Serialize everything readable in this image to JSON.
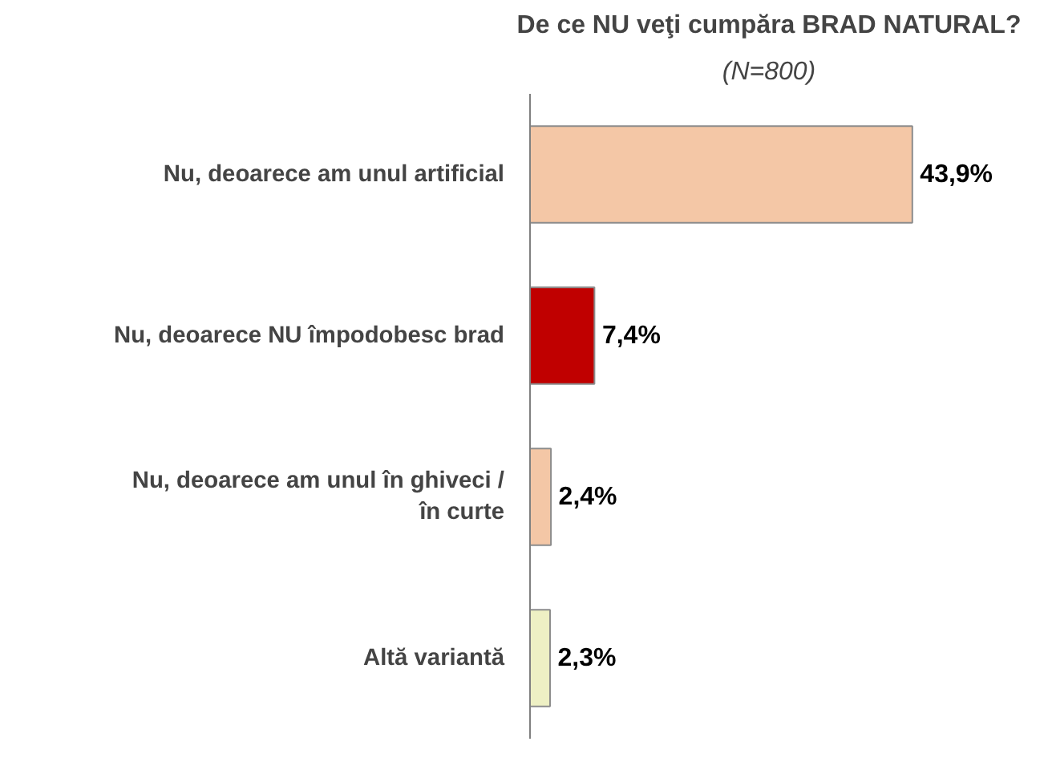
{
  "chart_data": {
    "type": "bar",
    "orientation": "horizontal",
    "title": "De ce NU veţi cumpăra BRAD NATURAL?",
    "subtitle": "(N=800)",
    "categories": [
      "Nu, deoarece am unul artificial",
      "Nu, deoarece NU împodobesc brad",
      "Nu, deoarece am unul în ghiveci / în curte",
      "Altă variantă"
    ],
    "values": [
      43.9,
      7.4,
      2.4,
      2.3
    ],
    "colors": [
      "#f4c7a6",
      "#c00000",
      "#f4c7a6",
      "#eef0c4"
    ],
    "value_labels": [
      "43,9%",
      "7,4%",
      "2,4%",
      "2,3%"
    ],
    "grid": false
  }
}
